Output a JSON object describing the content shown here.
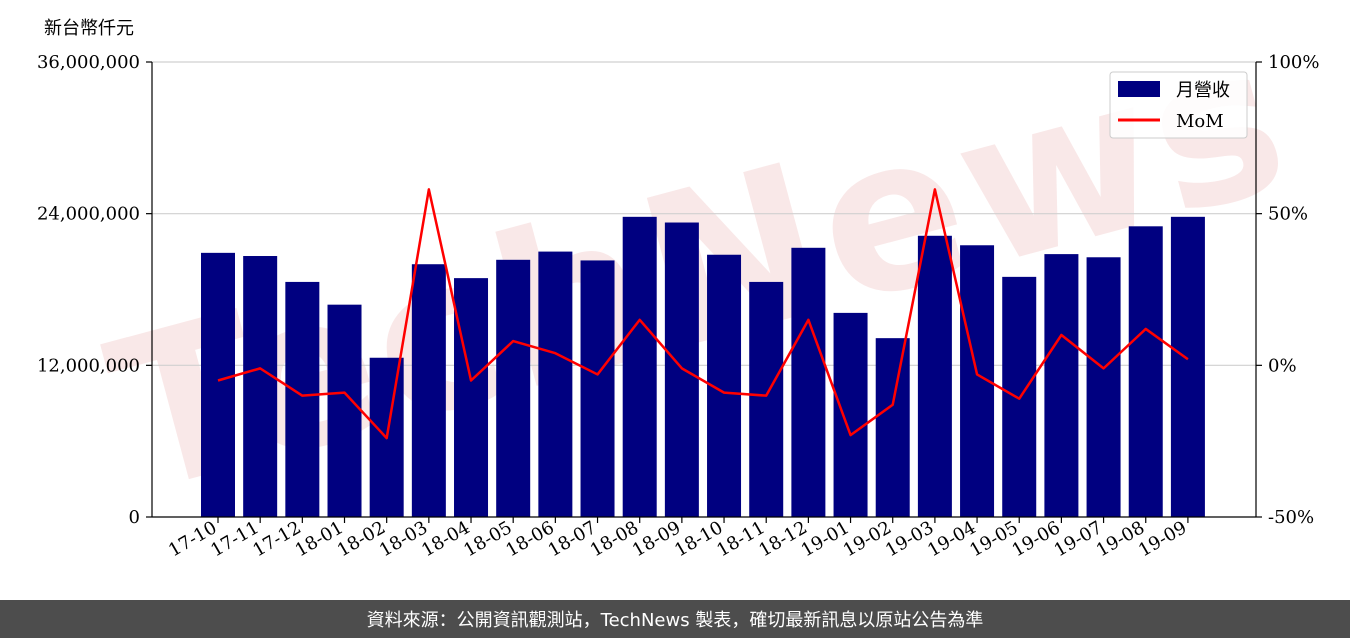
{
  "watermark": "TechNews",
  "footer": {
    "text": "資料來源：公開資訊觀測站，TechNews 製表，確切最新訊息以原站公告為準",
    "bg": "#4d4d4d"
  },
  "chart_data": {
    "type": "bar",
    "unit_label": "新台幣仟元",
    "categories": [
      "17-10",
      "17-11",
      "17-12",
      "18-01",
      "18-02",
      "18-03",
      "18-04",
      "18-05",
      "18-06",
      "18-07",
      "18-08",
      "18-09",
      "18-10",
      "18-11",
      "18-12",
      "19-01",
      "19-02",
      "19-03",
      "19-04",
      "19-05",
      "19-06",
      "19-07",
      "19-08",
      "19-09"
    ],
    "series": [
      {
        "name": "月營收",
        "type": "bar",
        "axis": "left",
        "color": "#000080",
        "values": [
          20900000,
          20650000,
          18600000,
          16800000,
          12600000,
          20000000,
          18900000,
          20350000,
          21000000,
          20300000,
          23750000,
          23300000,
          20750000,
          18600000,
          21300000,
          16150000,
          14150000,
          22250000,
          21500000,
          19000000,
          20800000,
          20550000,
          23000000,
          23750000
        ]
      },
      {
        "name": "MoM",
        "type": "line",
        "axis": "right",
        "color": "#ff0000",
        "values": [
          -5,
          -1,
          -10,
          -9,
          -24,
          58,
          -5,
          8,
          4,
          -3,
          15,
          -1,
          -9,
          -10,
          15,
          -23,
          -13,
          58,
          -3,
          -11,
          10,
          -1,
          12,
          2
        ]
      }
    ],
    "ylim_left": [
      0,
      36000000
    ],
    "yticks_left": [
      "0",
      "12,000,000",
      "24,000,000",
      "36,000,000"
    ],
    "ylim_right": [
      -50,
      100
    ],
    "yticks_right": [
      "-50%",
      "0%",
      "50%",
      "100%"
    ],
    "legend_position": "top-right",
    "grid": true
  }
}
